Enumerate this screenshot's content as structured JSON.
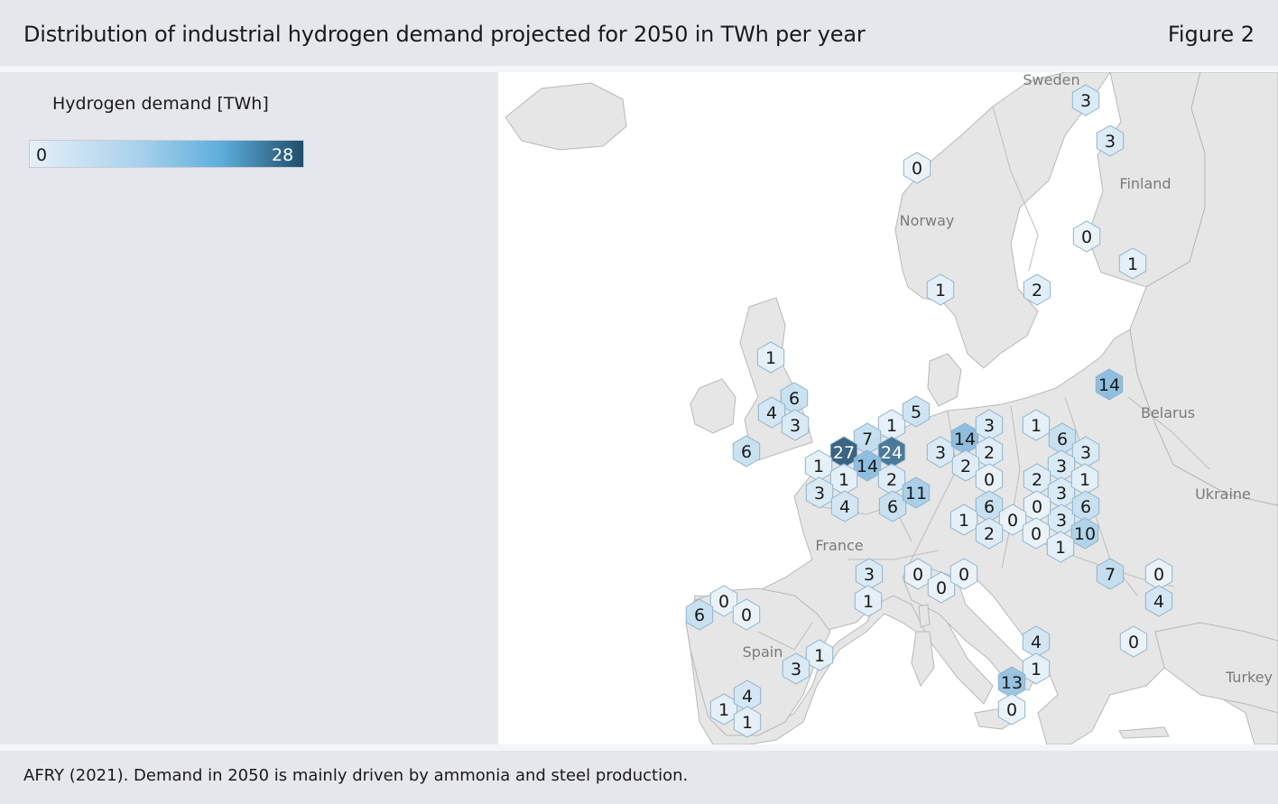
{
  "header": {
    "title": "Distribution of industrial hydrogen demand projected for 2050 in TWh per year",
    "figure": "Figure 2"
  },
  "legend": {
    "title": "Hydrogen demand [TWh]",
    "min": "0",
    "max": "28",
    "scale_min": 0,
    "scale_max": 28
  },
  "colors": {
    "land": "#e6e6e6",
    "sea": "#ffffff",
    "border": "#b5b5b5",
    "hex_low": "#eaf3fa",
    "hex_high": "#23506e",
    "hex_stroke": "#8fb3cc"
  },
  "map_labels": [
    {
      "id": "sweden",
      "text": "Sweden"
    },
    {
      "id": "finland",
      "text": "Finland"
    },
    {
      "id": "norway",
      "text": "Norway"
    },
    {
      "id": "belarus",
      "text": "Belarus"
    },
    {
      "id": "ukraine",
      "text": "Ukraine"
    },
    {
      "id": "france",
      "text": "France"
    },
    {
      "id": "spain",
      "text": "Spain"
    },
    {
      "id": "turkey",
      "text": "Turkey"
    }
  ],
  "hexagons": [
    3,
    3,
    0,
    0,
    1,
    1,
    2,
    14,
    1,
    6,
    4,
    3,
    6,
    1,
    5,
    7,
    27,
    24,
    14,
    1,
    1,
    2,
    3,
    4,
    6,
    11,
    3,
    14,
    3,
    2,
    2,
    0,
    1,
    6,
    3,
    3,
    2,
    3,
    1,
    3,
    0,
    6,
    6,
    1,
    0,
    2,
    0,
    10,
    1,
    3,
    0,
    0,
    0,
    1,
    7,
    0,
    4,
    0,
    6,
    0,
    1,
    3,
    0,
    4,
    1,
    13,
    1,
    4,
    1,
    0
  ],
  "footer": {
    "source": "AFRY (2021). Demand in 2050 is mainly driven by ammonia and steel production."
  }
}
